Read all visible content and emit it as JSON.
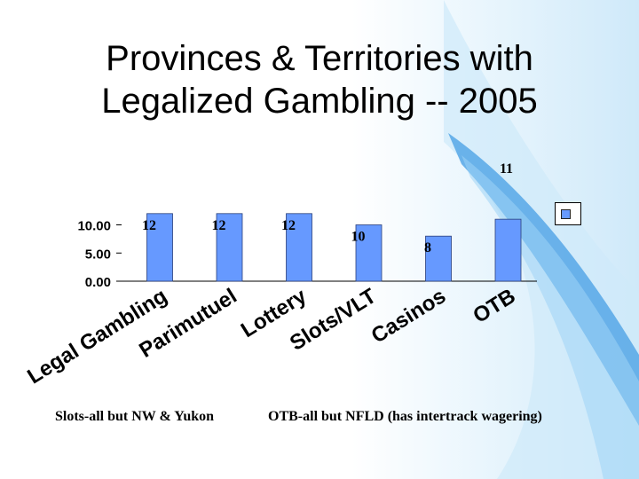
{
  "slide": {
    "title_line1": "Provinces & Territories with",
    "title_line2": "Legalized Gambling -- 2005",
    "note_left": "Slots-all but NW & Yukon",
    "note_right": "OTB-all but NFLD (has intertrack wagering)"
  },
  "colors": {
    "bar": "#6699ff",
    "bar_stroke": "#2a3f7a",
    "accent_band": "#56a7e6",
    "accent_band_light": "#9ed3f5"
  },
  "chart_data": {
    "type": "bar",
    "categories": [
      "Legal Gambling",
      "Parimutuel",
      "Lottery",
      "Slots/VLT",
      "Casinos",
      "OTB"
    ],
    "values": [
      12,
      12,
      12,
      10,
      8,
      11
    ],
    "data_labels": [
      "12",
      "12",
      "12",
      "10",
      "8",
      "11"
    ],
    "y_tick_labels": [
      "0.00",
      "5.00",
      "10.00"
    ],
    "y_ticks": [
      0,
      5,
      10
    ],
    "ylim": [
      0,
      10
    ],
    "title": "",
    "xlabel": "",
    "ylabel": "",
    "grid": false,
    "legend": {
      "placement": "right",
      "entries": [
        ""
      ]
    }
  }
}
